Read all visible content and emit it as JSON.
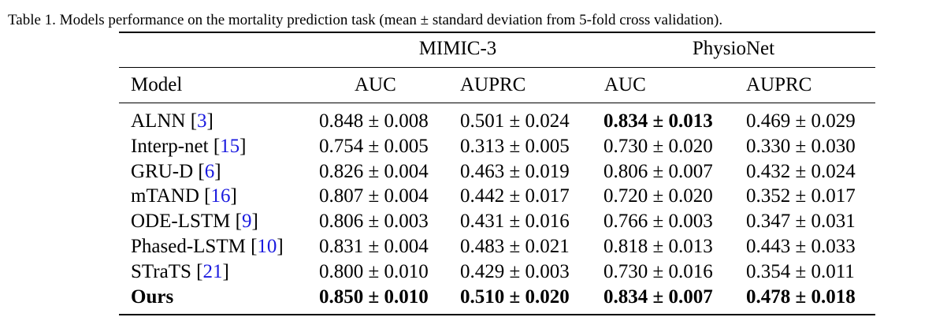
{
  "caption": "Table 1. Models performance on the mortality prediction task (mean ± standard deviation from 5-fold cross validation).",
  "table": {
    "group_headers": [
      "MIMIC-3",
      "PhysioNet"
    ],
    "column_headers": [
      "Model",
      "AUC",
      "AUPRC",
      "AUC",
      "AUPRC"
    ],
    "rows": [
      {
        "model": "ALNN",
        "ref": "3",
        "bold_row": false,
        "cells": [
          {
            "v": "0.848 ± 0.008",
            "bold": false
          },
          {
            "v": "0.501 ± 0.024",
            "bold": false
          },
          {
            "v": "0.834 ± 0.013",
            "bold": true
          },
          {
            "v": "0.469 ± 0.029",
            "bold": false
          }
        ]
      },
      {
        "model": "Interp-net",
        "ref": "15",
        "bold_row": false,
        "cells": [
          {
            "v": "0.754 ± 0.005",
            "bold": false
          },
          {
            "v": "0.313 ± 0.005",
            "bold": false
          },
          {
            "v": "0.730 ± 0.020",
            "bold": false
          },
          {
            "v": "0.330 ± 0.030",
            "bold": false
          }
        ]
      },
      {
        "model": "GRU-D",
        "ref": "6",
        "bold_row": false,
        "cells": [
          {
            "v": "0.826 ± 0.004",
            "bold": false
          },
          {
            "v": "0.463 ± 0.019",
            "bold": false
          },
          {
            "v": "0.806 ± 0.007",
            "bold": false
          },
          {
            "v": "0.432 ± 0.024",
            "bold": false
          }
        ]
      },
      {
        "model": "mTAND",
        "ref": "16",
        "bold_row": false,
        "cells": [
          {
            "v": "0.807 ± 0.004",
            "bold": false
          },
          {
            "v": "0.442 ± 0.017",
            "bold": false
          },
          {
            "v": "0.720 ± 0.020",
            "bold": false
          },
          {
            "v": "0.352 ± 0.017",
            "bold": false
          }
        ]
      },
      {
        "model": "ODE-LSTM",
        "ref": "9",
        "bold_row": false,
        "cells": [
          {
            "v": "0.806 ± 0.003",
            "bold": false
          },
          {
            "v": "0.431 ± 0.016",
            "bold": false
          },
          {
            "v": "0.766 ± 0.003",
            "bold": false
          },
          {
            "v": "0.347 ± 0.031",
            "bold": false
          }
        ]
      },
      {
        "model": "Phased-LSTM",
        "ref": "10",
        "bold_row": false,
        "cells": [
          {
            "v": "0.831 ± 0.004",
            "bold": false
          },
          {
            "v": "0.483 ± 0.021",
            "bold": false
          },
          {
            "v": "0.818 ± 0.013",
            "bold": false
          },
          {
            "v": "0.443 ± 0.033",
            "bold": false
          }
        ]
      },
      {
        "model": "STraTS",
        "ref": "21",
        "bold_row": false,
        "cells": [
          {
            "v": "0.800 ± 0.010",
            "bold": false
          },
          {
            "v": "0.429 ± 0.003",
            "bold": false
          },
          {
            "v": "0.730 ± 0.016",
            "bold": false
          },
          {
            "v": "0.354 ± 0.011",
            "bold": false
          }
        ]
      },
      {
        "model": "Ours",
        "ref": "",
        "bold_row": true,
        "cells": [
          {
            "v": "0.850 ± 0.010",
            "bold": true
          },
          {
            "v": "0.510 ± 0.020",
            "bold": true
          },
          {
            "v": "0.834 ± 0.007",
            "bold": true
          },
          {
            "v": "0.478 ± 0.018",
            "bold": true
          }
        ]
      }
    ]
  }
}
